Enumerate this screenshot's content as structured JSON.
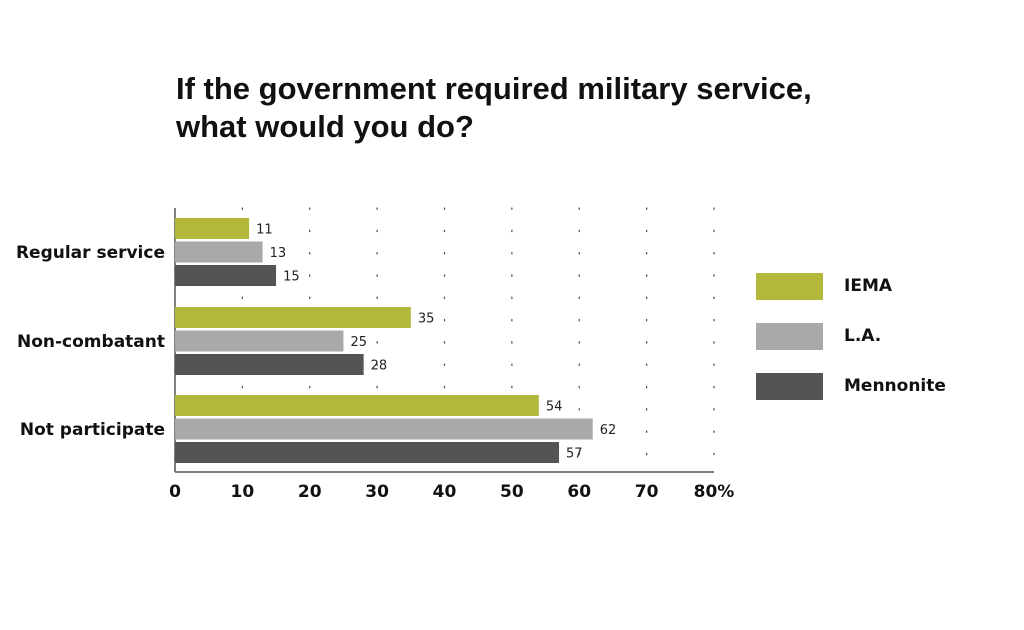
{
  "title_lines": [
    "If the government required military service,",
    "what would you do?"
  ],
  "colors": {
    "IEMA": "#b3b83a",
    "L.A.": "#a9a9a9",
    "Mennonite": "#545454"
  },
  "legend": [
    "IEMA",
    "L.A.",
    "Mennonite"
  ],
  "chart_data": {
    "type": "bar",
    "orientation": "horizontal",
    "title": "If the government required military service, what would you do?",
    "categories": [
      "Regular service",
      "Non-combatant",
      "Not participate"
    ],
    "series": [
      {
        "name": "IEMA",
        "values": [
          11,
          35,
          54
        ]
      },
      {
        "name": "L.A.",
        "values": [
          13,
          25,
          62
        ]
      },
      {
        "name": "Mennonite",
        "values": [
          15,
          28,
          57
        ]
      }
    ],
    "xlim": [
      0,
      80
    ],
    "x_ticks": [
      "0",
      "10",
      "20",
      "30",
      "40",
      "50",
      "60",
      "70",
      "80%"
    ],
    "grid": "vertical dotted",
    "legend_position": "right",
    "data_labels": true
  }
}
